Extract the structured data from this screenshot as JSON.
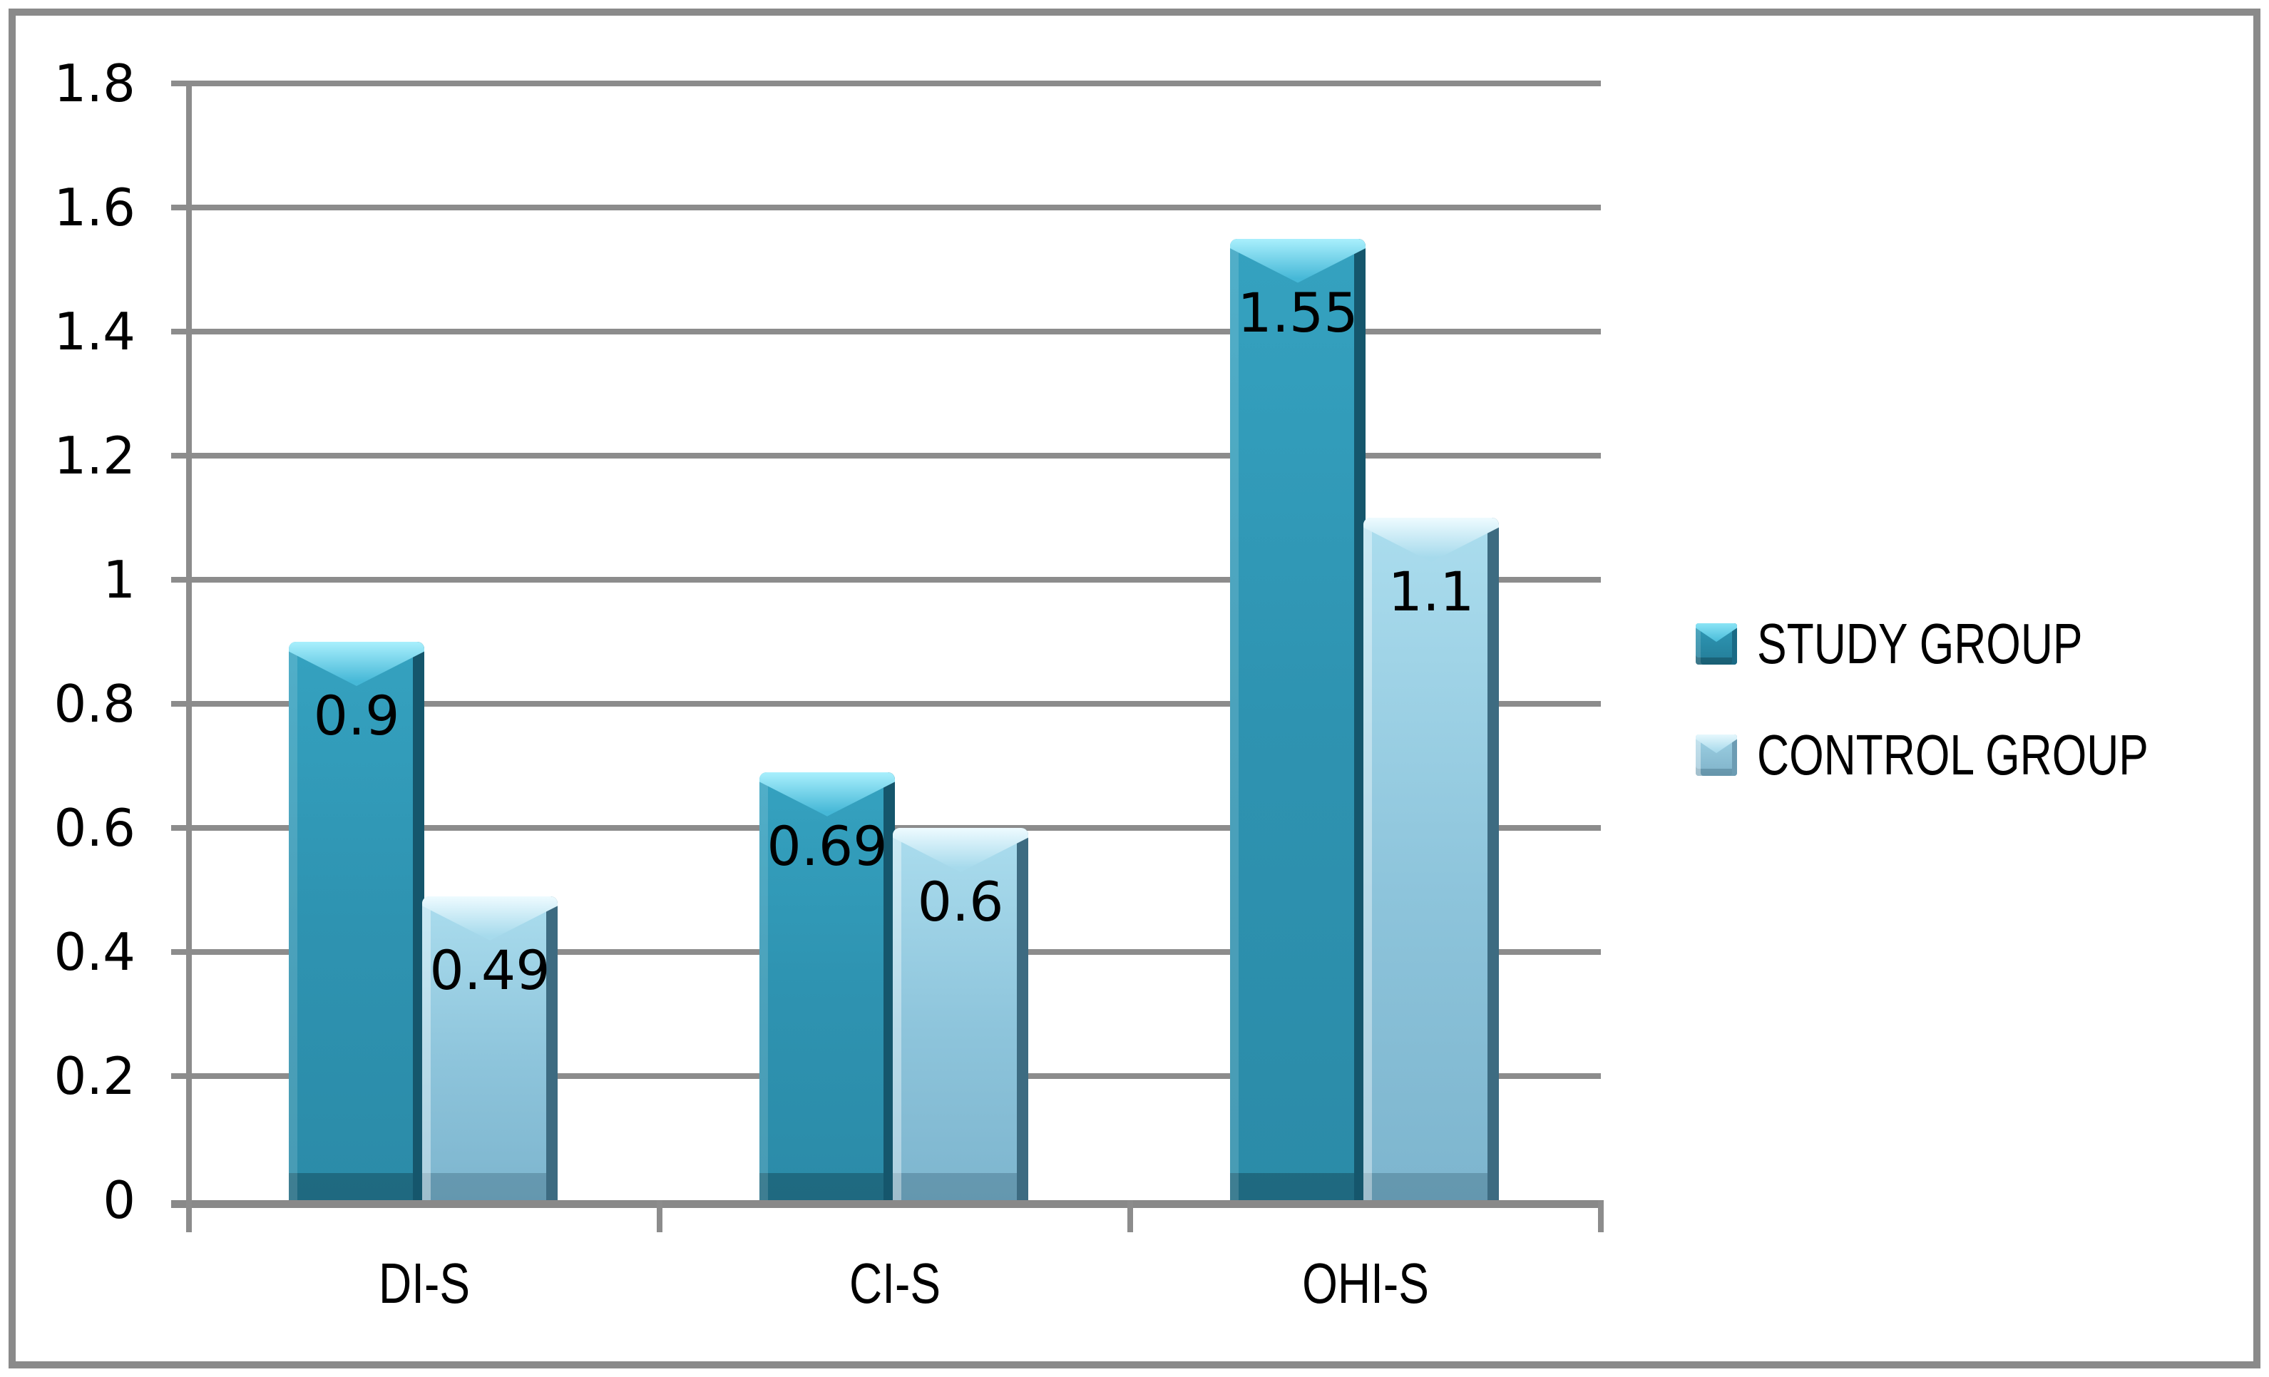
{
  "chart_data": {
    "type": "bar",
    "title": "",
    "xlabel": "",
    "ylabel": "",
    "categories": [
      "DI-S",
      "CI-S",
      "OHI-S"
    ],
    "series": [
      {
        "name": "STUDY GROUP",
        "values": [
          0.9,
          0.69,
          1.55
        ],
        "value_labels": [
          "0.9",
          "0.69",
          "1.55"
        ],
        "color": "#2E93B1"
      },
      {
        "name": "CONTROL GROUP",
        "values": [
          0.49,
          0.6,
          1.1
        ],
        "value_labels": [
          "0.49",
          "0.6",
          "1.1"
        ],
        "color": "#8FC5DC"
      }
    ],
    "ylim": [
      0,
      1.8
    ],
    "ytick_step": 0.2,
    "yticks": [
      {
        "value": 0,
        "label": "0"
      },
      {
        "value": 0.2,
        "label": "0.2"
      },
      {
        "value": 0.4,
        "label": "0.4"
      },
      {
        "value": 0.6,
        "label": "0.6"
      },
      {
        "value": 0.8,
        "label": "0.8"
      },
      {
        "value": 1,
        "label": "1"
      },
      {
        "value": 1.2,
        "label": "1.2"
      },
      {
        "value": 1.4,
        "label": "1.4"
      },
      {
        "value": 1.6,
        "label": "1.6"
      },
      {
        "value": 1.8,
        "label": "1.8"
      }
    ],
    "grid": "horizontal",
    "legend_position": "right",
    "data_labels": "inside-end"
  },
  "colors": {
    "gridline": "#8C8C8C",
    "axis": "#898989",
    "frame_border": "#8A8A8A",
    "label_text": "#000000",
    "background": "#FFFFFF"
  }
}
